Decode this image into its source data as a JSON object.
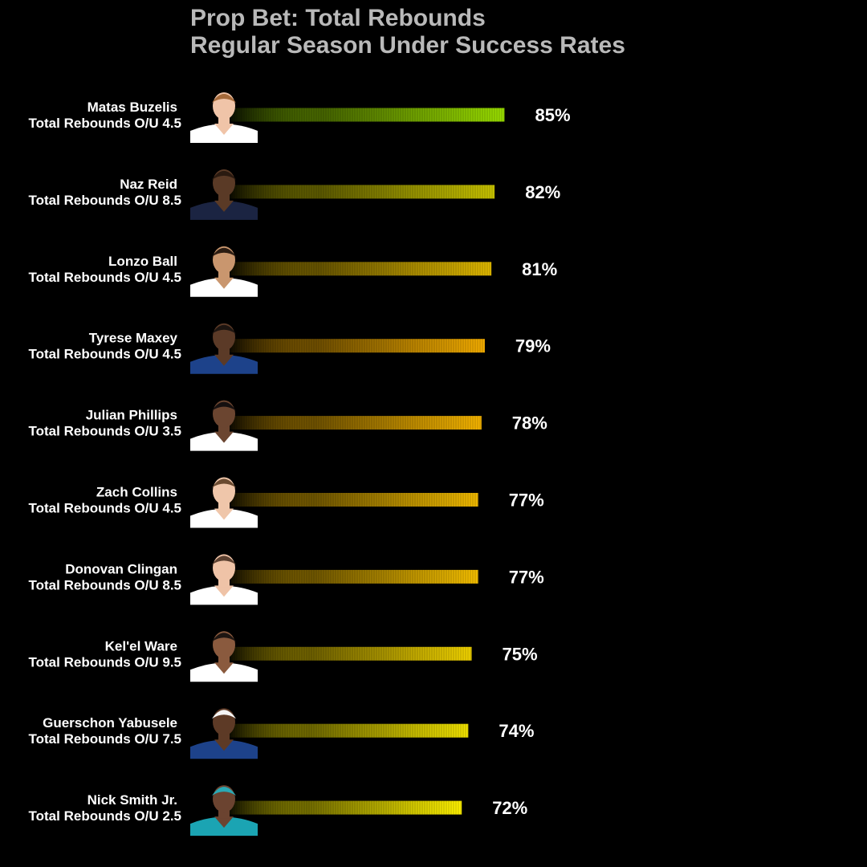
{
  "chart_data": {
    "type": "bar",
    "orientation": "horizontal",
    "title": "Prop Bet: Total Rebounds",
    "subtitle": "Regular Season Under Success Rates",
    "xlim": [
      0,
      100
    ],
    "grid": false,
    "categories": [
      {
        "name": "Matas Buzelis",
        "line": "Total Rebounds O/U 4.5"
      },
      {
        "name": "Naz Reid",
        "line": "Total Rebounds O/U 8.5"
      },
      {
        "name": "Lonzo Ball",
        "line": "Total Rebounds O/U 4.5"
      },
      {
        "name": "Tyrese Maxey",
        "line": "Total Rebounds O/U 4.5"
      },
      {
        "name": "Julian Phillips",
        "line": "Total Rebounds O/U 3.5"
      },
      {
        "name": "Zach Collins",
        "line": "Total Rebounds O/U 4.5"
      },
      {
        "name": "Donovan Clingan",
        "line": "Total Rebounds O/U 8.5"
      },
      {
        "name": "Kel'el Ware",
        "line": "Total Rebounds O/U 9.5"
      },
      {
        "name": "Guerschon Yabusele",
        "line": "Total Rebounds O/U 7.5"
      },
      {
        "name": "Nick Smith Jr.",
        "line": "Total Rebounds O/U 2.5"
      }
    ],
    "values": [
      85,
      82,
      81,
      79,
      78,
      77,
      77,
      75,
      74,
      72
    ],
    "value_labels": [
      "85%",
      "82%",
      "81%",
      "79%",
      "78%",
      "77%",
      "77%",
      "75%",
      "74%",
      "72%"
    ],
    "bar_colors": [
      "#99dd00",
      "#c8c300",
      "#e0b800",
      "#f3ac00",
      "#f5b400",
      "#f1ba00",
      "#f5bf00",
      "#f1d300",
      "#f2e400",
      "#fff200"
    ],
    "jersey_colors": [
      "#ffffff",
      "#1b2442",
      "#ffffff",
      "#1d428a",
      "#ffffff",
      "#ffffff",
      "#ffffff",
      "#ffffff",
      "#1d428a",
      "#1ba4b3"
    ],
    "skin_colors": [
      "#f0c4a8",
      "#5a3a26",
      "#c9966e",
      "#5b3a27",
      "#6b4530",
      "#efc6aa",
      "#efc3a7",
      "#8a5a3e",
      "#5d3a26",
      "#6b4330"
    ],
    "hair_colors": [
      "#a56a3a",
      "#2a1a10",
      "#2b1c12",
      "#1c1410",
      "#151010",
      "#6a4a30",
      "#5b4030",
      "#1e1612",
      "#f5f5f5",
      "#2aa9b5"
    ]
  }
}
